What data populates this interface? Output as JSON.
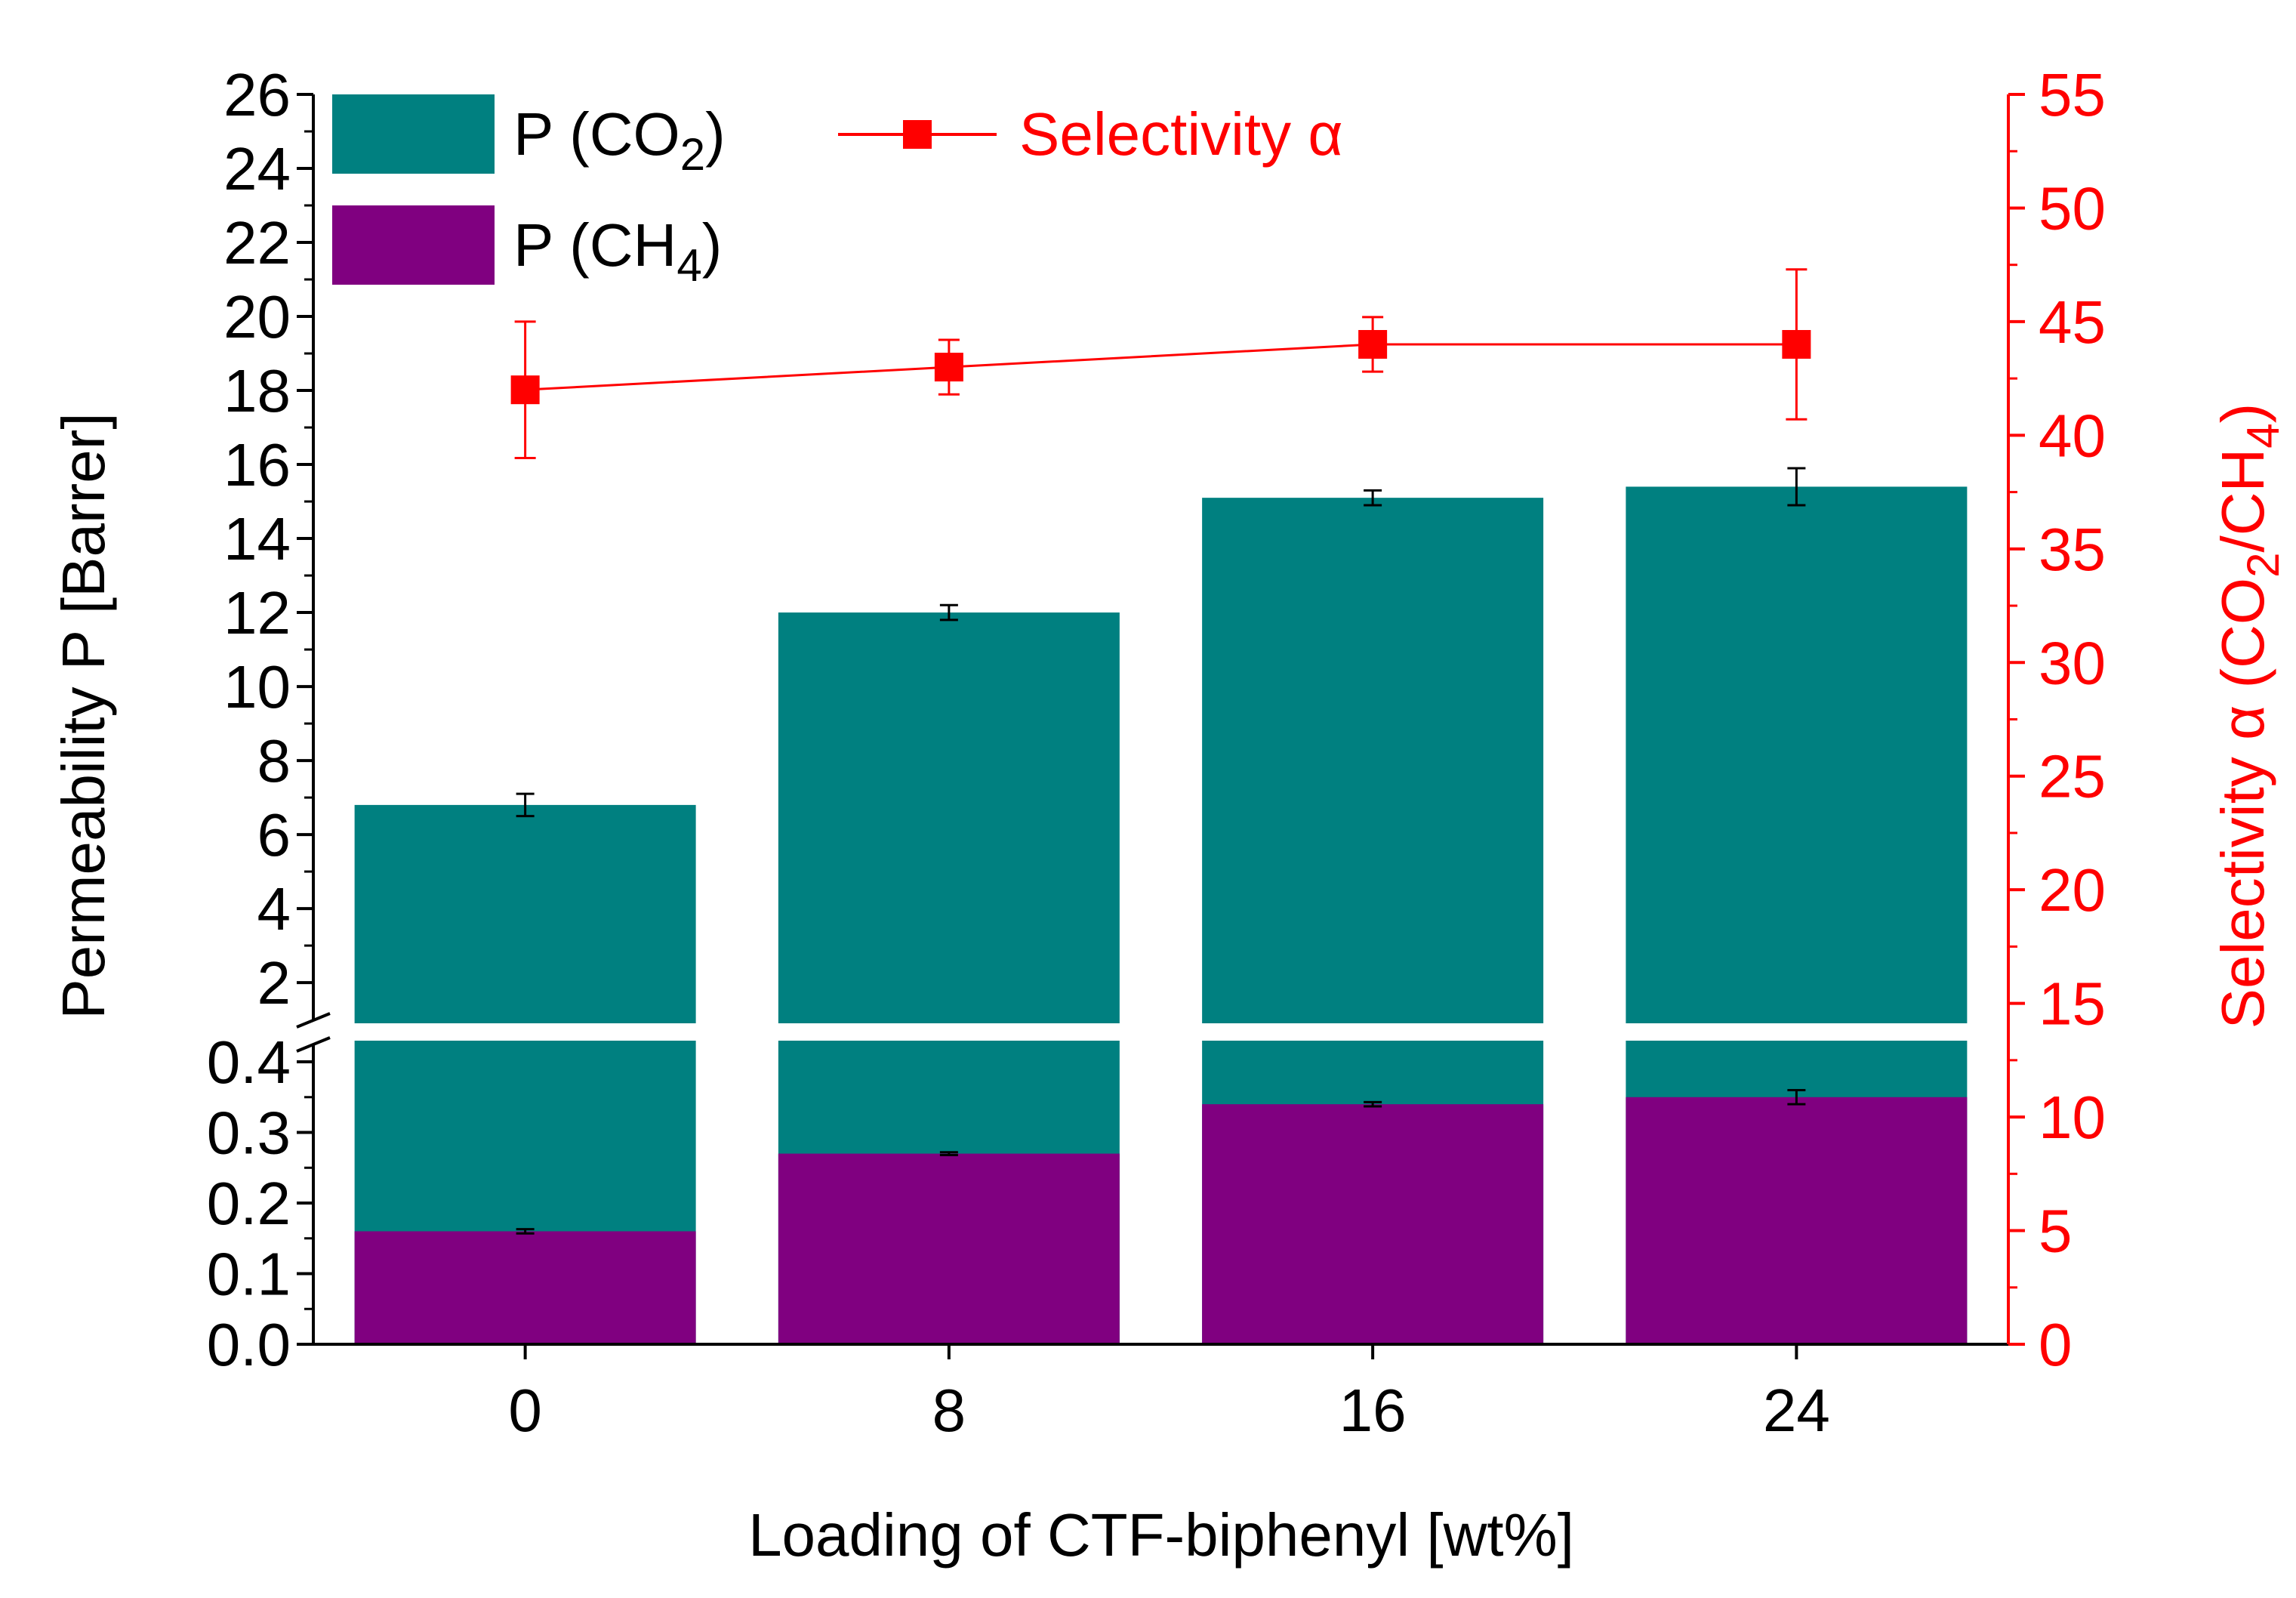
{
  "chart_data": {
    "type": "bar",
    "subtype": "stacked-bar-with-line-on-secondary-axis",
    "categories": [
      "0",
      "8",
      "16",
      "24"
    ],
    "xlabel": "Loading of CTF-biphenyl [wt%]",
    "ylabel": "Permeability P [Barrer]",
    "y2label": {
      "main": "Selectivity α (CO",
      "sub1": "2",
      "mid": "/CH",
      "sub2": "4",
      "end": ")"
    },
    "y_axis_break": {
      "lower_range": [
        0,
        0.43
      ],
      "upper_range": [
        0.9,
        26
      ]
    },
    "y_lower_ticks": [
      "0.0",
      "0.1",
      "0.2",
      "0.3",
      "0.4"
    ],
    "y_upper_ticks": [
      "2",
      "4",
      "6",
      "8",
      "10",
      "12",
      "14",
      "16",
      "18",
      "20",
      "22",
      "24",
      "26"
    ],
    "y2_ticks": [
      "0",
      "5",
      "10",
      "15",
      "20",
      "25",
      "30",
      "35",
      "40",
      "45",
      "50",
      "55"
    ],
    "y2lim": [
      0,
      55
    ],
    "series": [
      {
        "name": "P (CO2)",
        "kind": "bar",
        "color": "#008080",
        "values": [
          6.8,
          12.0,
          15.1,
          15.4
        ],
        "errors": [
          0.3,
          0.2,
          0.2,
          0.5
        ]
      },
      {
        "name": "P (CH4)",
        "kind": "bar",
        "color": "#800080",
        "values": [
          0.16,
          0.27,
          0.34,
          0.35
        ],
        "errors": [
          0.003,
          0.002,
          0.003,
          0.01
        ]
      },
      {
        "name": "Selectivity α",
        "kind": "line",
        "axis": "secondary",
        "color": "#ff0000",
        "values": [
          42,
          43,
          44,
          44
        ],
        "errors": [
          3,
          1.2,
          1.2,
          3.3
        ]
      }
    ],
    "legend": {
      "co2": {
        "main": "P (CO",
        "sub": "2",
        "end": ")"
      },
      "ch4": {
        "main": "P (CH",
        "sub": "4",
        "end": ")"
      },
      "selectivity": "Selectivity α"
    }
  }
}
